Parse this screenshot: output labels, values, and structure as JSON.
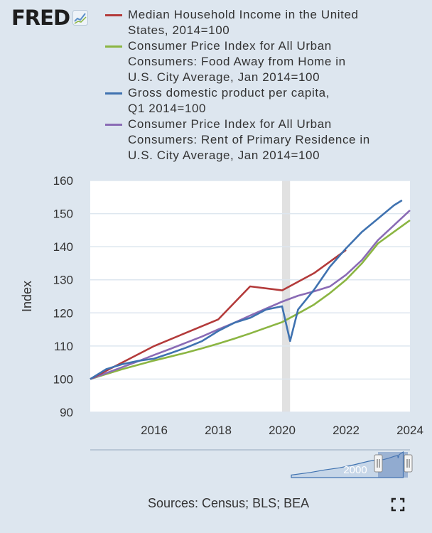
{
  "brand": {
    "name": "FRED",
    "icon": "chart-icon"
  },
  "chart_data": {
    "type": "line",
    "xlabel": "",
    "ylabel": "Index",
    "ylim": [
      90,
      160
    ],
    "yticks": [
      90,
      100,
      110,
      120,
      130,
      140,
      150,
      160
    ],
    "xlim": [
      2014.0,
      2024.0
    ],
    "xticks": [
      2016,
      2018,
      2020,
      2022,
      2024
    ],
    "recession": [
      2020.0,
      2020.25
    ],
    "series": [
      {
        "name": "Median Household Income in the United\nStates, 2014=100",
        "color": "#b33a3a",
        "x": [
          2014,
          2015,
          2016,
          2017,
          2018,
          2019,
          2020,
          2021,
          2022
        ],
        "y": [
          100,
          105,
          110,
          114,
          118,
          128,
          126.8,
          132,
          139
        ]
      },
      {
        "name": "Consumer Price Index for All Urban\nConsumers: Food Away from Home in\nU.S. City Average, Jan 2014=100",
        "color": "#8bb542",
        "x": [
          2014,
          2014.5,
          2015,
          2015.5,
          2016,
          2016.5,
          2017,
          2017.5,
          2018,
          2018.5,
          2019,
          2019.5,
          2020,
          2020.5,
          2021,
          2021.5,
          2022,
          2022.5,
          2023,
          2023.5,
          2024
        ],
        "y": [
          100,
          101.5,
          103,
          104.3,
          105.6,
          106.8,
          108,
          109.3,
          110.7,
          112.2,
          113.8,
          115.5,
          117.2,
          119.8,
          122.5,
          126,
          130,
          135,
          141,
          144.5,
          148
        ]
      },
      {
        "name": "Gross domestic product per capita,\nQ1 2014=100",
        "color": "#3f72b0",
        "x": [
          2014,
          2014.5,
          2015,
          2015.5,
          2016,
          2016.5,
          2017,
          2017.5,
          2018,
          2018.5,
          2019,
          2019.5,
          2020,
          2020.25,
          2020.5,
          2021,
          2021.5,
          2022,
          2022.5,
          2023,
          2023.5,
          2023.75
        ],
        "y": [
          100,
          103,
          104.5,
          105.5,
          106.2,
          107.8,
          109.5,
          111.5,
          114.5,
          117,
          118.5,
          121,
          122,
          111.5,
          121,
          127,
          134,
          139.5,
          144.5,
          148.5,
          152.5,
          154
        ]
      },
      {
        "name": "Consumer Price Index for All Urban\nConsumers: Rent of Primary Residence in\nU.S. City Average, Jan 2014=100",
        "color": "#8a6bb5",
        "x": [
          2014,
          2014.5,
          2015,
          2015.5,
          2016,
          2016.5,
          2017,
          2017.5,
          2018,
          2018.5,
          2019,
          2019.5,
          2020,
          2020.5,
          2021,
          2021.5,
          2022,
          2022.5,
          2023,
          2023.5,
          2024
        ],
        "y": [
          100,
          101.8,
          103.6,
          105.4,
          107.3,
          109.1,
          111,
          112.9,
          115,
          117,
          119.2,
          121.3,
          123.4,
          125.2,
          126.5,
          128,
          131.5,
          136,
          142,
          146.5,
          151
        ]
      }
    ],
    "navigator": {
      "label": "2000"
    }
  },
  "footer": {
    "sources": "Sources: Census; BLS; BEA"
  },
  "icons": {
    "fullscreen": "fullscreen-icon"
  }
}
